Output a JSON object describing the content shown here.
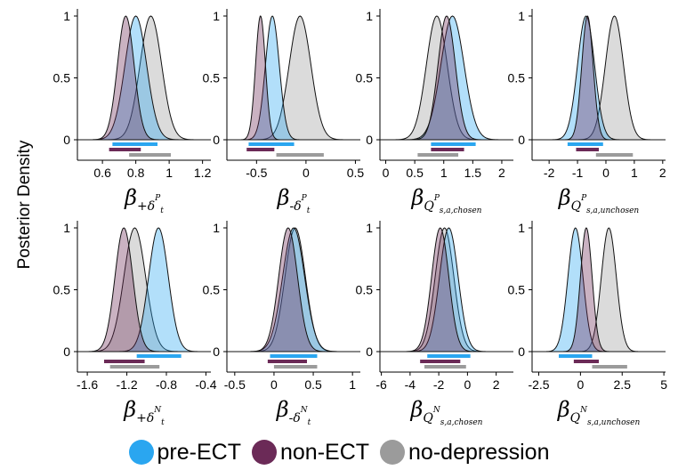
{
  "ylabel": "Posterior Density",
  "legend": [
    {
      "label": "pre-ECT",
      "color": "#2aa6f0"
    },
    {
      "label": "non-ECT",
      "color": "#6b2a57"
    },
    {
      "label": "no-depression",
      "color": "#9b9b9b"
    }
  ],
  "chart_data": [
    {
      "type": "area",
      "xlabel_main": "β",
      "xlabel_sub": "+δ",
      "xlabel_sup": "P",
      "xlabel_tail": "t",
      "xlim": [
        0.45,
        1.25
      ],
      "xticks": [
        0.6,
        0.8,
        1.0,
        1.2
      ],
      "xtick_labels": [
        "0.6",
        "0.8",
        "1",
        "1.2"
      ],
      "ylim": [
        0,
        1
      ],
      "yticks": [
        0,
        0.5,
        1
      ],
      "ytick_labels": [
        "0",
        "0.5",
        "1"
      ],
      "grid": false,
      "series": [
        {
          "group": "pre-ECT",
          "mean": 0.8,
          "sd": 0.065,
          "interval": [
            0.66,
            0.93
          ]
        },
        {
          "group": "non-ECT",
          "mean": 0.74,
          "sd": 0.05,
          "interval": [
            0.64,
            0.83
          ]
        },
        {
          "group": "no-depression",
          "mean": 0.89,
          "sd": 0.065,
          "interval": [
            0.76,
            1.01
          ]
        }
      ]
    },
    {
      "type": "area",
      "xlabel_main": "β",
      "xlabel_sub": "-δ",
      "xlabel_sup": "P",
      "xlabel_tail": "t",
      "xlim": [
        -0.8,
        0.55
      ],
      "xticks": [
        -0.5,
        0,
        0.5
      ],
      "xtick_labels": [
        "-0.5",
        "0",
        "0.5"
      ],
      "ylim": [
        0,
        1
      ],
      "yticks": [
        0,
        0.5,
        1
      ],
      "ytick_labels": [
        "0",
        "0.5",
        "1"
      ],
      "grid": false,
      "series": [
        {
          "group": "pre-ECT",
          "mean": -0.34,
          "sd": 0.07,
          "interval": [
            -0.58,
            -0.12
          ]
        },
        {
          "group": "non-ECT",
          "mean": -0.46,
          "sd": 0.05,
          "interval": [
            -0.6,
            -0.32
          ]
        },
        {
          "group": "no-depression",
          "mean": -0.06,
          "sd": 0.11,
          "interval": [
            -0.3,
            0.18
          ]
        }
      ]
    },
    {
      "type": "area",
      "xlabel_main": "β",
      "xlabel_sub": "Q",
      "xlabel_sup": "P",
      "xlabel_tail": "s,a,chosen",
      "xlim": [
        -0.1,
        2.2
      ],
      "xticks": [
        0,
        0.5,
        1,
        1.5,
        2
      ],
      "xtick_labels": [
        "0",
        "0.5",
        "1",
        "1.5",
        "2"
      ],
      "ylim": [
        0,
        1
      ],
      "yticks": [
        0,
        0.5,
        1
      ],
      "ytick_labels": [
        "0",
        "0.5",
        "1"
      ],
      "grid": false,
      "series": [
        {
          "group": "pre-ECT",
          "mean": 1.15,
          "sd": 0.2,
          "interval": [
            0.78,
            1.55
          ]
        },
        {
          "group": "non-ECT",
          "mean": 1.05,
          "sd": 0.15,
          "interval": [
            0.78,
            1.35
          ]
        },
        {
          "group": "no-depression",
          "mean": 0.88,
          "sd": 0.18,
          "interval": [
            0.55,
            1.25
          ]
        }
      ]
    },
    {
      "type": "area",
      "xlabel_main": "β",
      "xlabel_sub": "Q",
      "xlabel_sup": "P",
      "xlabel_tail": "s,a,unchosen",
      "xlim": [
        -2.6,
        2.1
      ],
      "xticks": [
        -2,
        -1,
        0,
        1,
        2
      ],
      "xtick_labels": [
        "-2",
        "-1",
        "0",
        "1",
        "2"
      ],
      "ylim": [
        0,
        1
      ],
      "yticks": [
        0,
        0.5,
        1
      ],
      "ytick_labels": [
        "0",
        "0.5",
        "1"
      ],
      "grid": false,
      "series": [
        {
          "group": "pre-ECT",
          "mean": -0.7,
          "sd": 0.3,
          "interval": [
            -1.35,
            -0.1
          ]
        },
        {
          "group": "non-ECT",
          "mean": -0.65,
          "sd": 0.2,
          "interval": [
            -1.05,
            -0.25
          ]
        },
        {
          "group": "no-depression",
          "mean": 0.3,
          "sd": 0.32,
          "interval": [
            -0.35,
            0.95
          ]
        }
      ]
    },
    {
      "type": "area",
      "xlabel_main": "β",
      "xlabel_sub": "+δ",
      "xlabel_sup": "N",
      "xlabel_tail": "t",
      "xlim": [
        -1.7,
        -0.35
      ],
      "xticks": [
        -1.6,
        -1.2,
        -0.8,
        -0.4
      ],
      "xtick_labels": [
        "-1.6",
        "-1.2",
        "-0.8",
        "-0.4"
      ],
      "ylim": [
        0,
        1
      ],
      "yticks": [
        0,
        0.5,
        1
      ],
      "ytick_labels": [
        "0",
        "0.5",
        "1"
      ],
      "grid": false,
      "series": [
        {
          "group": "pre-ECT",
          "mean": -0.88,
          "sd": 0.1,
          "interval": [
            -1.1,
            -0.65
          ]
        },
        {
          "group": "non-ECT",
          "mean": -1.23,
          "sd": 0.09,
          "interval": [
            -1.43,
            -1.02
          ]
        },
        {
          "group": "no-depression",
          "mean": -1.12,
          "sd": 0.11,
          "interval": [
            -1.37,
            -0.87
          ]
        }
      ]
    },
    {
      "type": "area",
      "xlabel_main": "β",
      "xlabel_sub": "-δ",
      "xlabel_sup": "N",
      "xlabel_tail": "t",
      "xlim": [
        -0.6,
        1.1
      ],
      "xticks": [
        -0.5,
        0,
        0.5,
        1
      ],
      "xtick_labels": [
        "-0.5",
        "0",
        "0.5",
        "1"
      ],
      "ylim": [
        0,
        1
      ],
      "yticks": [
        0,
        0.5,
        1
      ],
      "ytick_labels": [
        "0",
        "0.5",
        "1"
      ],
      "grid": false,
      "series": [
        {
          "group": "pre-ECT",
          "mean": 0.25,
          "sd": 0.14,
          "interval": [
            -0.05,
            0.55
          ]
        },
        {
          "group": "non-ECT",
          "mean": 0.18,
          "sd": 0.12,
          "interval": [
            -0.08,
            0.42
          ]
        },
        {
          "group": "no-depression",
          "mean": 0.27,
          "sd": 0.13,
          "interval": [
            0,
            0.55
          ]
        }
      ]
    },
    {
      "type": "area",
      "xlabel_main": "β",
      "xlabel_sub": "Q",
      "xlabel_sup": "N",
      "xlabel_tail": "s,a,chosen",
      "xlim": [
        -6.1,
        3.2
      ],
      "xticks": [
        -6,
        -4,
        -2,
        0,
        2
      ],
      "xtick_labels": [
        "-6",
        "-4",
        "-2",
        "0",
        "2"
      ],
      "ylim": [
        0,
        1
      ],
      "yticks": [
        0,
        0.5,
        1
      ],
      "ytick_labels": [
        "0",
        "0.5",
        "1"
      ],
      "grid": false,
      "series": [
        {
          "group": "pre-ECT",
          "mean": -1.3,
          "sd": 0.65,
          "interval": [
            -2.8,
            0.2
          ]
        },
        {
          "group": "non-ECT",
          "mean": -1.9,
          "sd": 0.6,
          "interval": [
            -3.3,
            -0.5
          ]
        },
        {
          "group": "no-depression",
          "mean": -1.6,
          "sd": 0.65,
          "interval": [
            -3.0,
            -0.1
          ]
        }
      ]
    },
    {
      "type": "area",
      "xlabel_main": "β",
      "xlabel_sub": "Q",
      "xlabel_sup": "N",
      "xlabel_tail": "s,a,unchosen",
      "xlim": [
        -2.9,
        5.1
      ],
      "xticks": [
        -2.5,
        0,
        2.5,
        5
      ],
      "xtick_labels": [
        "-2.5",
        "0",
        "2.5",
        "5"
      ],
      "ylim": [
        0,
        1
      ],
      "yticks": [
        0,
        0.5,
        1
      ],
      "ytick_labels": [
        "0",
        "0.5",
        "1"
      ],
      "grid": false,
      "series": [
        {
          "group": "pre-ECT",
          "mean": -0.3,
          "sd": 0.45,
          "interval": [
            -1.3,
            0.7
          ]
        },
        {
          "group": "non-ECT",
          "mean": 0.35,
          "sd": 0.35,
          "interval": [
            -0.4,
            1.1
          ]
        },
        {
          "group": "no-depression",
          "mean": 1.7,
          "sd": 0.45,
          "interval": [
            0.7,
            2.8
          ]
        }
      ]
    }
  ]
}
